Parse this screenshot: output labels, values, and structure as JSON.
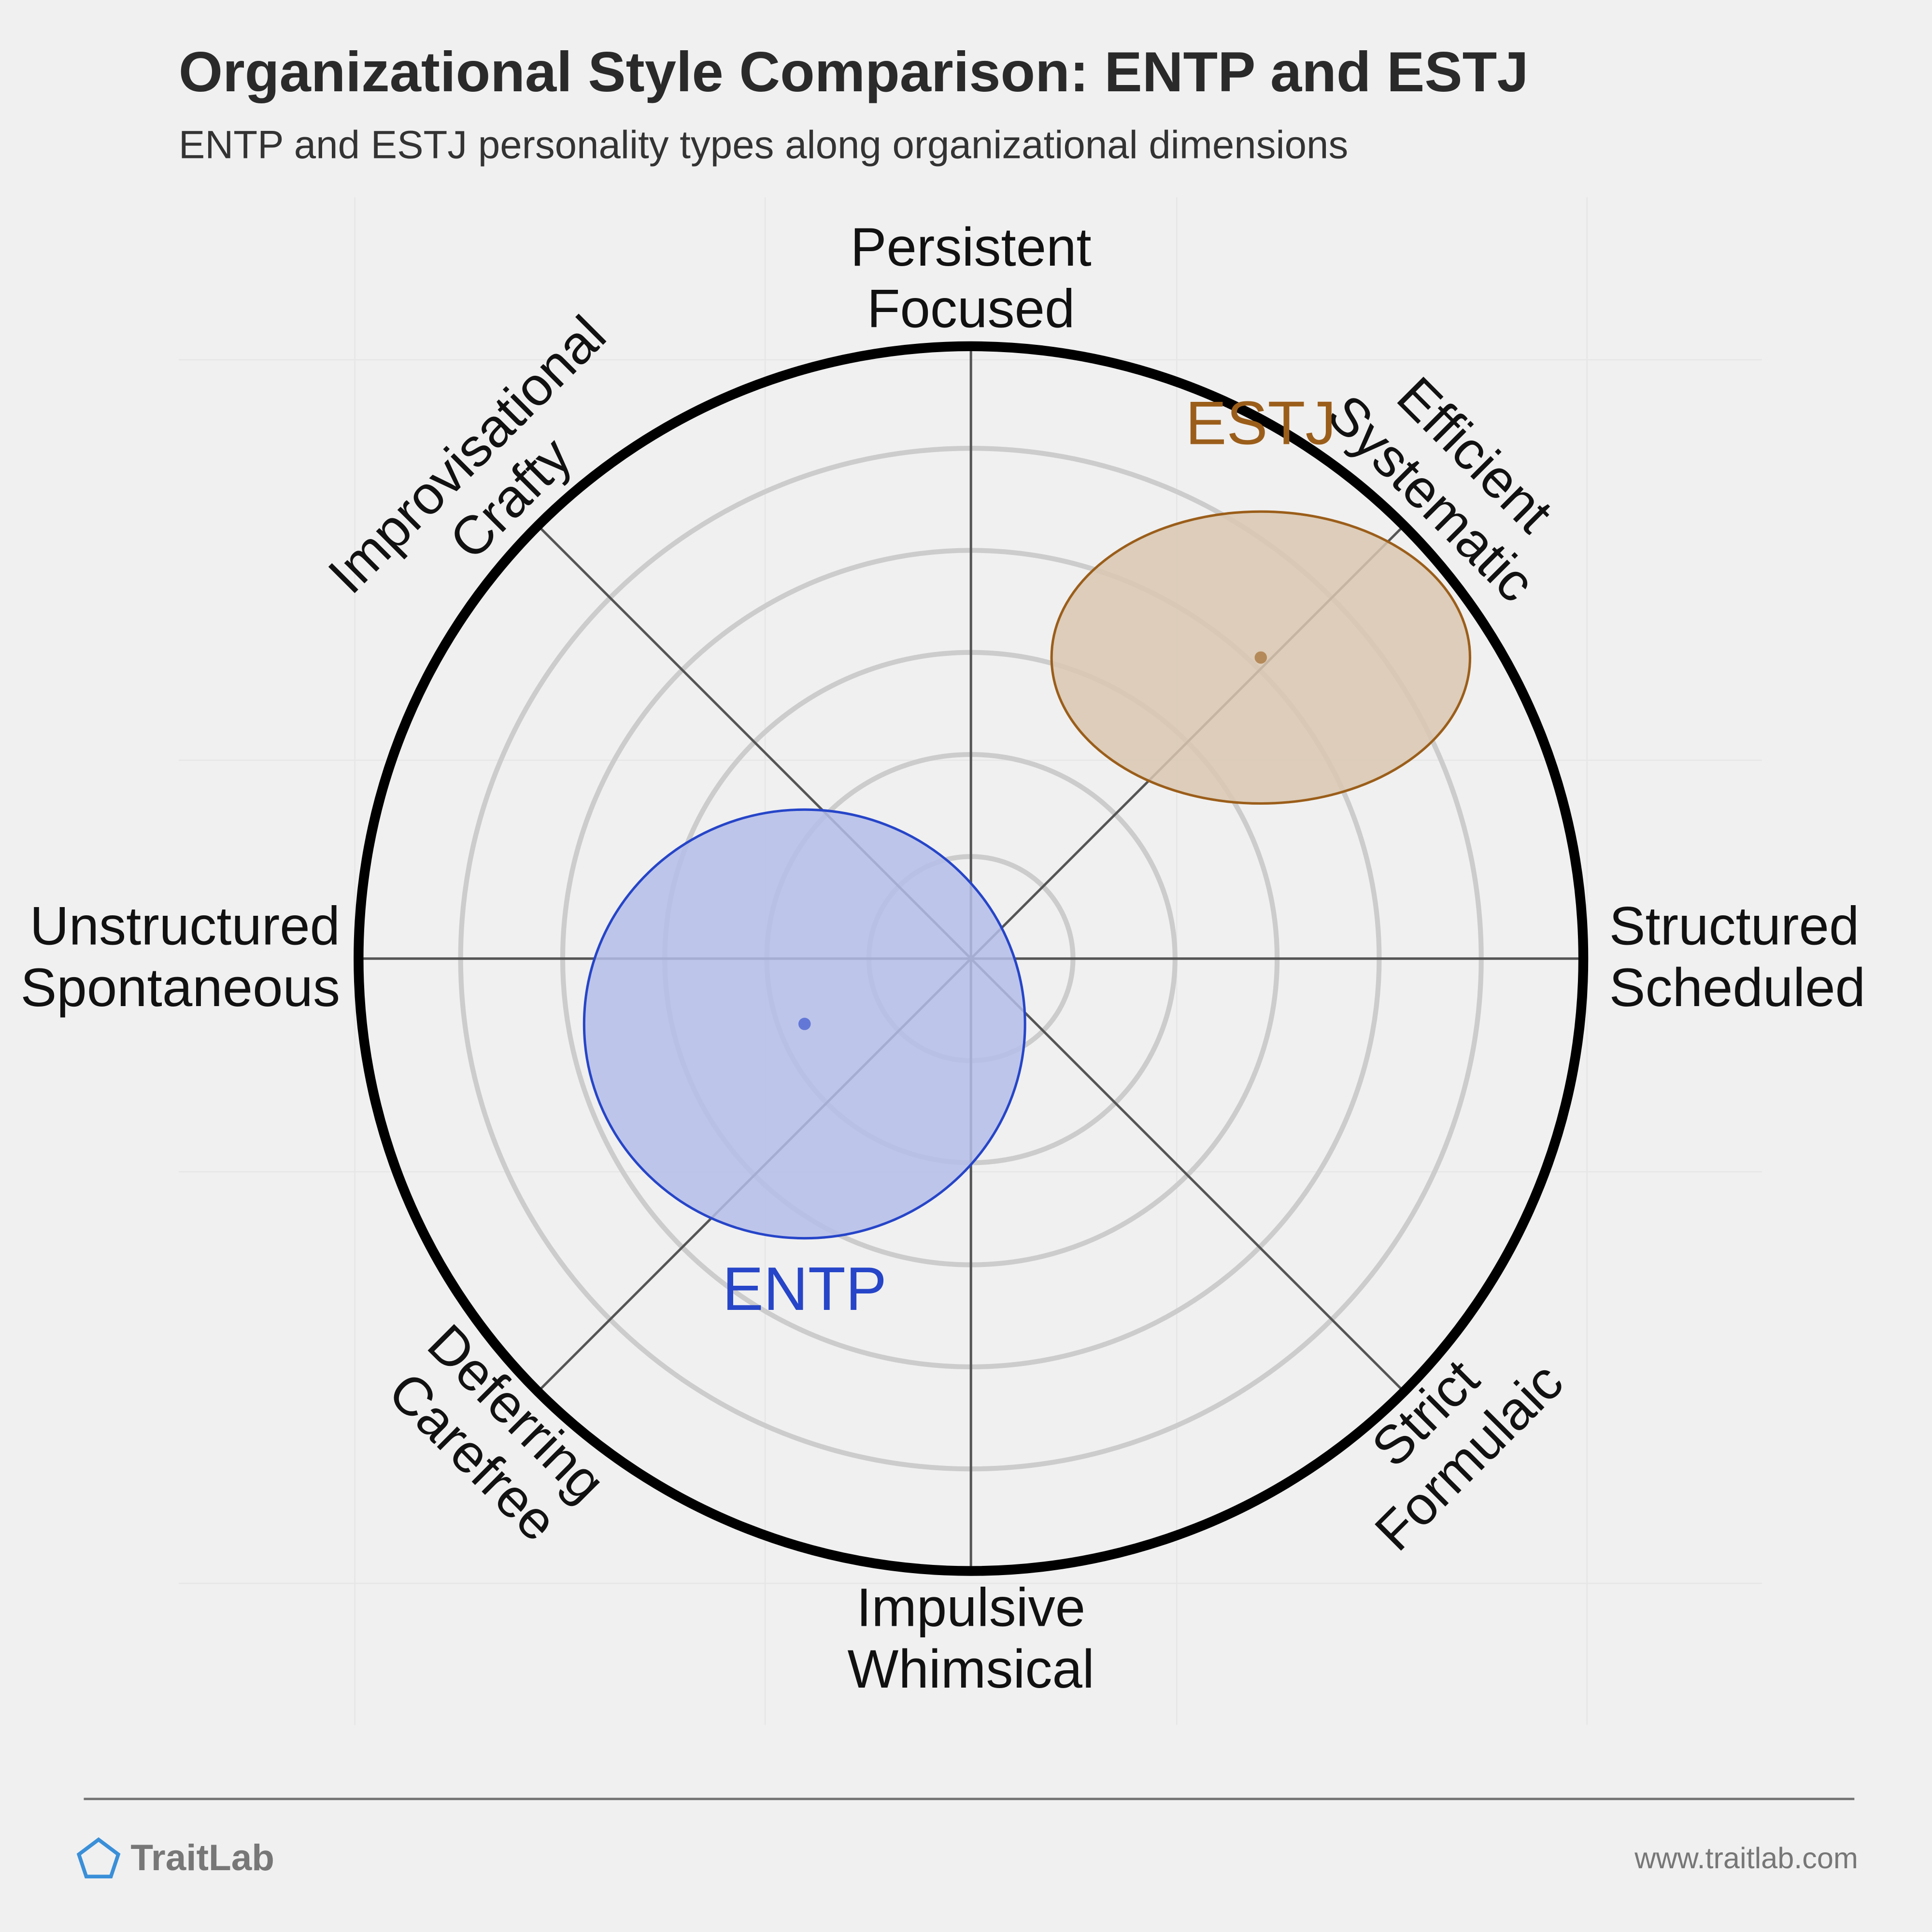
{
  "chart_data": {
    "type": "radial-scatter",
    "title": "Organizational Style Comparison: ENTP and ESTJ",
    "subtitle": "ENTP and ESTJ personality types along organizational dimensions",
    "axis_labels": [
      [
        "Persistent",
        "Focused"
      ],
      [
        "Efficient",
        "Systematic"
      ],
      [
        "Structured",
        "Scheduled"
      ],
      [
        "Strict",
        "Formulaic"
      ],
      [
        "Impulsive",
        "Whimsical"
      ],
      [
        "Deferring",
        "Carefree"
      ],
      [
        "Unstructured",
        "Spontaneous"
      ],
      [
        "Improvisational",
        "Crafty"
      ]
    ],
    "rlim": [
      0,
      6
    ],
    "rticks": [
      1,
      2,
      3,
      4,
      5
    ],
    "grid": true,
    "series": [
      {
        "name": "ENTP",
        "color": "#2645c8",
        "fill": "#b4bde9",
        "x": -1.63,
        "y": -0.64,
        "rx": 2.16,
        "ry": 2.1
      },
      {
        "name": "ESTJ",
        "color": "#9b5e1a",
        "fill": "#d9c7b0",
        "x": 2.84,
        "y": 2.95,
        "rx": 2.05,
        "ry": 1.43
      }
    ]
  },
  "footer": {
    "brand": "TraitLab",
    "url": "www.traitlab.com"
  }
}
